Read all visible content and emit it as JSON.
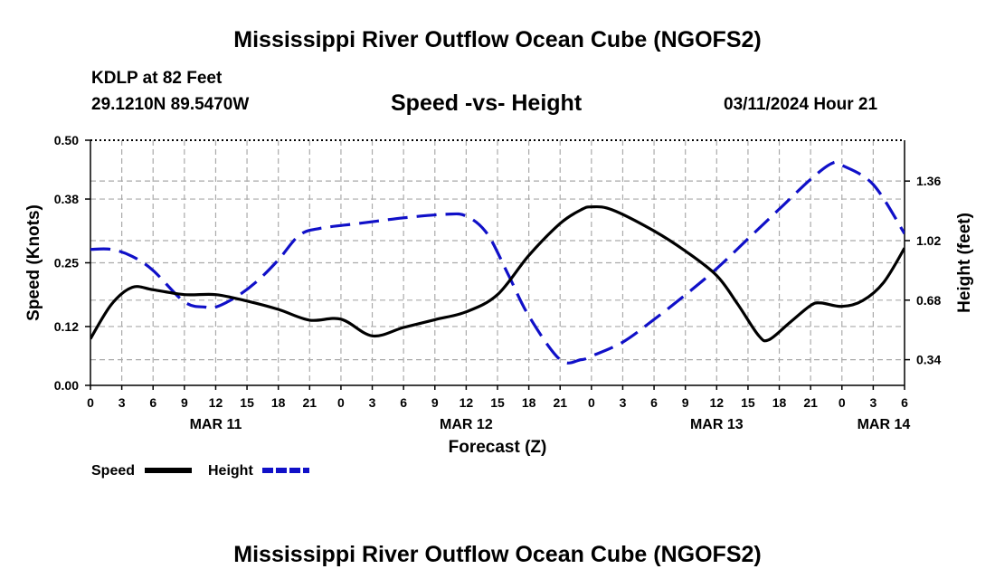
{
  "header": {
    "title": "Mississippi River Outflow Ocean Cube (NGOFS2)",
    "station": "KDLP at 82 Feet",
    "coords": "29.1210N  89.5470W",
    "subtitle": "Speed -vs- Height",
    "datetime": "03/11/2024 Hour 21",
    "footer_title": "Mississippi River Outflow Ocean Cube (NGOFS2)"
  },
  "colors": {
    "speed": "#000000",
    "height": "#1010c8",
    "grid": "#aaaaaa"
  },
  "chart_data": {
    "type": "line",
    "title": "Speed -vs- Height",
    "xlabel": "Forecast (Z)",
    "ylabel_left": "Speed (Knots)",
    "ylabel_right": "Height (feet)",
    "x_range_hours": [
      0,
      78
    ],
    "x_tick_step_hours": 3,
    "x_tick_labels": [
      "0",
      "3",
      "6",
      "9",
      "12",
      "15",
      "18",
      "21",
      "0",
      "3",
      "6",
      "9",
      "12",
      "15",
      "18",
      "21",
      "0",
      "3",
      "6",
      "9",
      "12",
      "15",
      "18",
      "21",
      "0",
      "3",
      "6"
    ],
    "date_labels": [
      {
        "hour": 12,
        "label": "MAR 11"
      },
      {
        "hour": 36,
        "label": "MAR 12"
      },
      {
        "hour": 60,
        "label": "MAR 13"
      },
      {
        "hour": 76,
        "label": "MAR 14"
      }
    ],
    "left_axis": {
      "min": 0,
      "max": 0.5,
      "ticks": [
        "0.00",
        "0.12",
        "0.25",
        "0.38",
        "0.50"
      ]
    },
    "right_axis": {
      "min": 0.1933,
      "max": 1.5933,
      "ticks": [
        "0.34",
        "0.68",
        "1.02",
        "1.36"
      ]
    },
    "grid": true,
    "series": [
      {
        "name": "Speed",
        "axis": "left",
        "style": "solid",
        "x": [
          0,
          2,
          4,
          6,
          9,
          12,
          15,
          18,
          21,
          24,
          27,
          30,
          33,
          36,
          39,
          42,
          45,
          47,
          48,
          50,
          54,
          57,
          60,
          62,
          64,
          65,
          67,
          69,
          70,
          72,
          74,
          76,
          78
        ],
        "values": [
          0.095,
          0.165,
          0.2,
          0.195,
          0.185,
          0.185,
          0.172,
          0.155,
          0.133,
          0.135,
          0.101,
          0.118,
          0.134,
          0.15,
          0.185,
          0.265,
          0.33,
          0.358,
          0.364,
          0.358,
          0.315,
          0.274,
          0.224,
          0.166,
          0.102,
          0.093,
          0.128,
          0.163,
          0.168,
          0.161,
          0.173,
          0.21,
          0.28
        ]
      },
      {
        "name": "Height",
        "axis": "right",
        "style": "dashed",
        "x": [
          0,
          2,
          4,
          6,
          9,
          11,
          12,
          14,
          16,
          18,
          20,
          22,
          26,
          30,
          34,
          36,
          38,
          40,
          42,
          45,
          47,
          48,
          51,
          54,
          57,
          60,
          63,
          66,
          69,
          71,
          72,
          75,
          78
        ],
        "values": [
          0.97,
          0.97,
          0.93,
          0.85,
          0.67,
          0.64,
          0.64,
          0.7,
          0.79,
          0.91,
          1.05,
          1.09,
          1.12,
          1.15,
          1.17,
          1.16,
          1.06,
          0.83,
          0.59,
          0.34,
          0.34,
          0.36,
          0.44,
          0.57,
          0.71,
          0.86,
          1.03,
          1.2,
          1.37,
          1.46,
          1.45,
          1.34,
          1.06
        ]
      }
    ]
  }
}
